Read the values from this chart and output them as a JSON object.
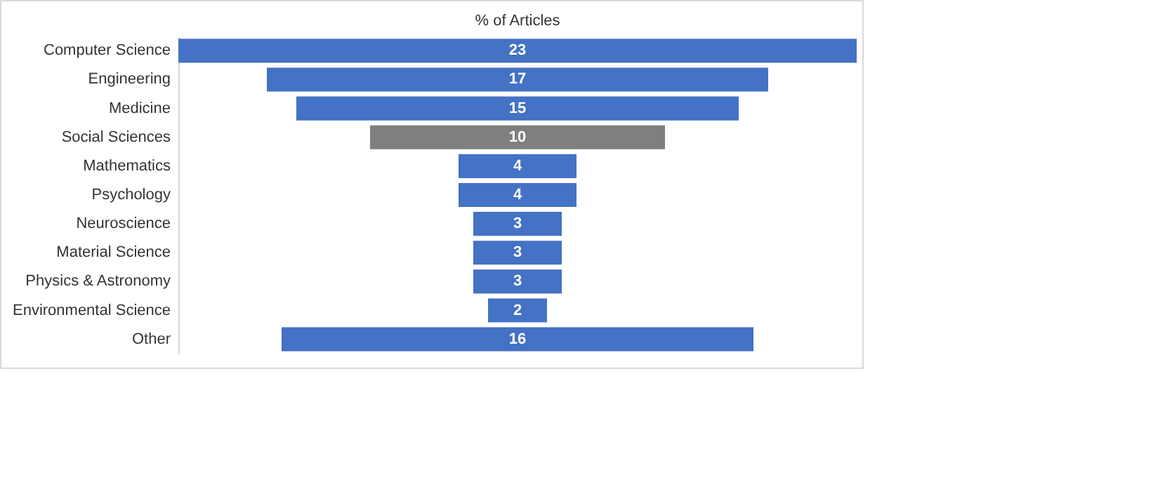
{
  "chart_data": {
    "type": "other",
    "title": "% of Articles",
    "categories": [
      "Computer Science",
      "Engineering",
      "Medicine",
      "Social Sciences",
      "Mathematics",
      "Psychology",
      "Neuroscience",
      "Material Science",
      "Physics & Astronomy",
      "Environmental Science",
      "Other"
    ],
    "values": [
      23,
      17,
      15,
      10,
      4,
      4,
      3,
      3,
      3,
      2,
      16
    ],
    "colors": [
      "#4472c4",
      "#4472c4",
      "#4472c4",
      "#7f7f7f",
      "#4472c4",
      "#4472c4",
      "#4472c4",
      "#4472c4",
      "#4472c4",
      "#4472c4",
      "#4472c4"
    ],
    "data_labels": true
  }
}
